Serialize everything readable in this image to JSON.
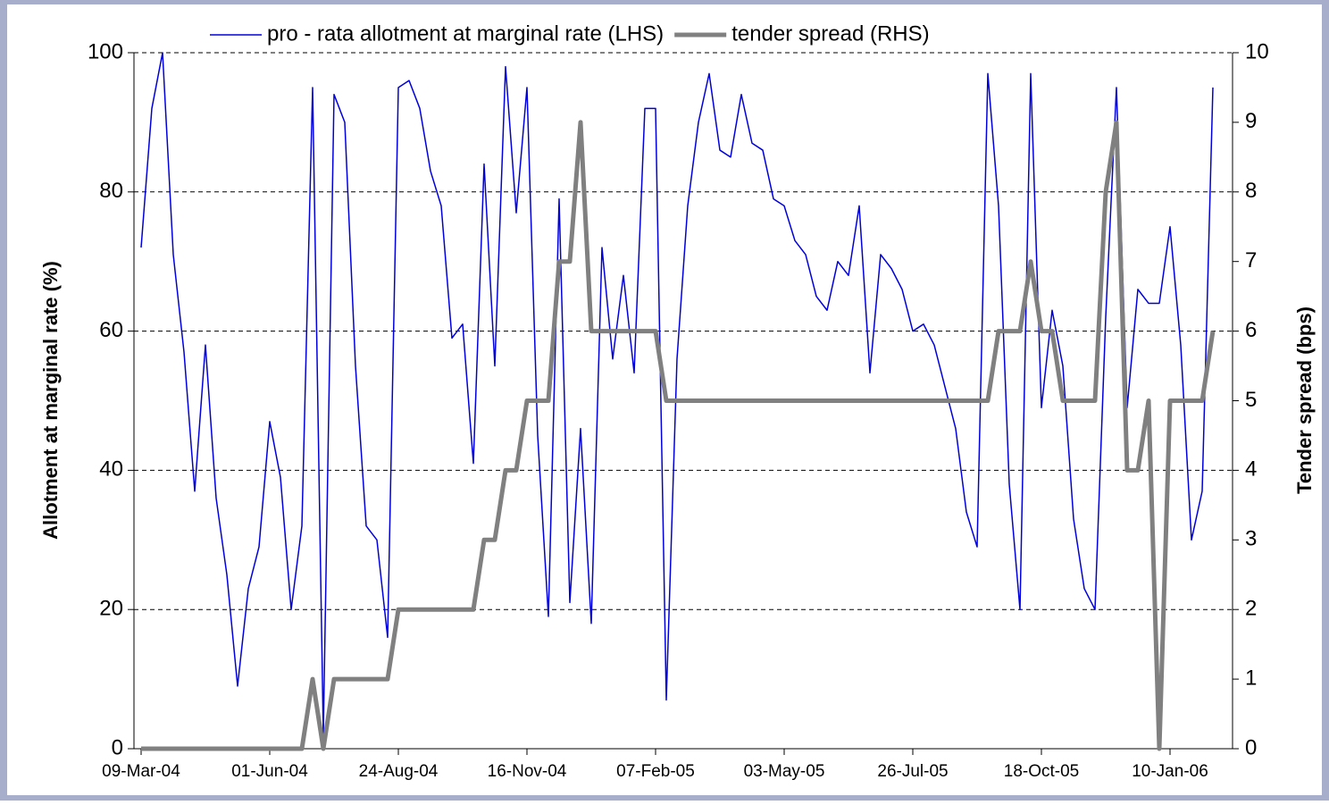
{
  "chart_data": {
    "type": "line",
    "categories": [
      "09-Mar-04",
      null,
      null,
      null,
      null,
      null,
      null,
      null,
      null,
      null,
      null,
      null,
      "01-Jun-04",
      null,
      null,
      null,
      null,
      null,
      null,
      null,
      null,
      null,
      null,
      null,
      "24-Aug-04",
      null,
      null,
      null,
      null,
      null,
      null,
      null,
      null,
      null,
      null,
      null,
      "16-Nov-04",
      null,
      null,
      null,
      null,
      null,
      null,
      null,
      null,
      null,
      null,
      null,
      "07-Feb-05",
      null,
      null,
      null,
      null,
      null,
      null,
      null,
      null,
      null,
      null,
      null,
      "03-May-05",
      null,
      null,
      null,
      null,
      null,
      null,
      null,
      null,
      null,
      null,
      null,
      "26-Jul-05",
      null,
      null,
      null,
      null,
      null,
      null,
      null,
      null,
      null,
      null,
      null,
      "18-Oct-05",
      null,
      null,
      null,
      null,
      null,
      null,
      null,
      null,
      null,
      null,
      null,
      "10-Jan-06",
      null,
      null,
      null,
      null
    ],
    "series": [
      {
        "name": "pro - rata allotment at marginal rate (LHS)",
        "color": "#0000dd",
        "axis": "y",
        "values": [
          72,
          92,
          100,
          71,
          57,
          37,
          58,
          36,
          25,
          9,
          23,
          29,
          47,
          39,
          20,
          32,
          95,
          2,
          94,
          90,
          55,
          32,
          30,
          16,
          95,
          96,
          92,
          83,
          78,
          59,
          61,
          41,
          84,
          55,
          98,
          77,
          95,
          45,
          19,
          79,
          21,
          46,
          18,
          72,
          56,
          68,
          54,
          92,
          92,
          7,
          56,
          78,
          90,
          97,
          86,
          85,
          94,
          87,
          86,
          79,
          78,
          73,
          71,
          65,
          63,
          70,
          68,
          78,
          54,
          71,
          69,
          66,
          60,
          61,
          58,
          52,
          46,
          34,
          29,
          97,
          78,
          38,
          20,
          97,
          49,
          63,
          55,
          33,
          23,
          20,
          62,
          95,
          49,
          66,
          64,
          64,
          75,
          58,
          30,
          37,
          95
        ]
      },
      {
        "name": "tender spread (RHS)",
        "color": "#808080",
        "axis": "y2",
        "values": [
          0,
          0,
          0,
          0,
          0,
          0,
          0,
          0,
          0,
          0,
          0,
          0,
          0,
          0,
          0,
          0,
          1,
          0,
          1,
          1,
          1,
          1,
          1,
          1,
          2,
          2,
          2,
          2,
          2,
          2,
          2,
          2,
          3,
          3,
          4,
          4,
          5,
          5,
          5,
          7,
          7,
          9,
          6,
          6,
          6,
          6,
          6,
          6,
          6,
          5,
          5,
          5,
          5,
          5,
          5,
          5,
          5,
          5,
          5,
          5,
          5,
          5,
          5,
          5,
          5,
          5,
          5,
          5,
          5,
          5,
          5,
          5,
          5,
          5,
          5,
          5,
          5,
          5,
          5,
          5,
          6,
          6,
          6,
          7,
          6,
          6,
          5,
          5,
          5,
          5,
          8,
          9,
          4,
          4,
          5,
          0,
          5,
          5,
          5,
          5,
          6
        ]
      }
    ],
    "ylabel": "Allotment at marginal rate (%)",
    "y2label": "Tender spread (bps)",
    "ylim": [
      0,
      100
    ],
    "yticks": [
      0,
      20,
      40,
      60,
      80,
      100
    ],
    "y2lim": [
      0,
      10
    ],
    "y2ticks": [
      0,
      1,
      2,
      3,
      4,
      5,
      6,
      7,
      8,
      9,
      10
    ],
    "grid": true,
    "legend": "top"
  }
}
